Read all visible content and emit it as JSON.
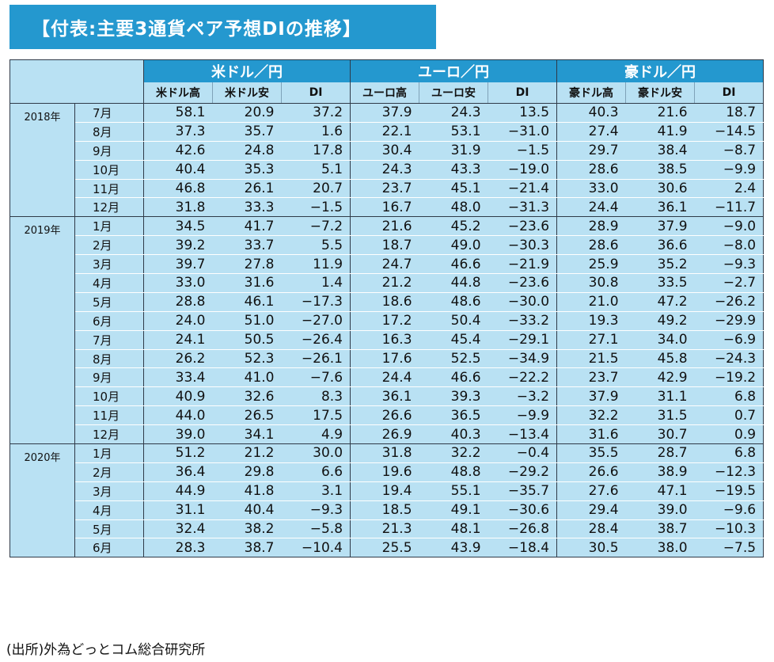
{
  "title": "【付表:主要3通貨ペア予想DIの推移】",
  "groups": [
    "米ドル／円",
    "ユーロ／円",
    "豪ドル／円"
  ],
  "subheaders": [
    "米ドル高",
    "米ドル安",
    "DI",
    "ユーロ高",
    "ユーロ安",
    "DI",
    "豪ドル高",
    "豪ドル安",
    "DI"
  ],
  "years": [
    {
      "year": "2018年",
      "rows": [
        {
          "month": "7月",
          "values": [
            "58.1",
            "20.9",
            "37.2",
            "37.9",
            "24.3",
            "13.5",
            "40.3",
            "21.6",
            "18.7"
          ]
        },
        {
          "month": "8月",
          "values": [
            "37.3",
            "35.7",
            "1.6",
            "22.1",
            "53.1",
            "−31.0",
            "27.4",
            "41.9",
            "−14.5"
          ]
        },
        {
          "month": "9月",
          "values": [
            "42.6",
            "24.8",
            "17.8",
            "30.4",
            "31.9",
            "−1.5",
            "29.7",
            "38.4",
            "−8.7"
          ]
        },
        {
          "month": "10月",
          "values": [
            "40.4",
            "35.3",
            "5.1",
            "24.3",
            "43.3",
            "−19.0",
            "28.6",
            "38.5",
            "−9.9"
          ]
        },
        {
          "month": "11月",
          "values": [
            "46.8",
            "26.1",
            "20.7",
            "23.7",
            "45.1",
            "−21.4",
            "33.0",
            "30.6",
            "2.4"
          ]
        },
        {
          "month": "12月",
          "values": [
            "31.8",
            "33.3",
            "−1.5",
            "16.7",
            "48.0",
            "−31.3",
            "24.4",
            "36.1",
            "−11.7"
          ]
        }
      ]
    },
    {
      "year": "2019年",
      "rows": [
        {
          "month": "1月",
          "values": [
            "34.5",
            "41.7",
            "−7.2",
            "21.6",
            "45.2",
            "−23.6",
            "28.9",
            "37.9",
            "−9.0"
          ]
        },
        {
          "month": "2月",
          "values": [
            "39.2",
            "33.7",
            "5.5",
            "18.7",
            "49.0",
            "−30.3",
            "28.6",
            "36.6",
            "−8.0"
          ]
        },
        {
          "month": "3月",
          "values": [
            "39.7",
            "27.8",
            "11.9",
            "24.7",
            "46.6",
            "−21.9",
            "25.9",
            "35.2",
            "−9.3"
          ]
        },
        {
          "month": "4月",
          "values": [
            "33.0",
            "31.6",
            "1.4",
            "21.2",
            "44.8",
            "−23.6",
            "30.8",
            "33.5",
            "−2.7"
          ]
        },
        {
          "month": "5月",
          "values": [
            "28.8",
            "46.1",
            "−17.3",
            "18.6",
            "48.6",
            "−30.0",
            "21.0",
            "47.2",
            "−26.2"
          ]
        },
        {
          "month": "6月",
          "values": [
            "24.0",
            "51.0",
            "−27.0",
            "17.2",
            "50.4",
            "−33.2",
            "19.3",
            "49.2",
            "−29.9"
          ]
        },
        {
          "month": "7月",
          "values": [
            "24.1",
            "50.5",
            "−26.4",
            "16.3",
            "45.4",
            "−29.1",
            "27.1",
            "34.0",
            "−6.9"
          ]
        },
        {
          "month": "8月",
          "values": [
            "26.2",
            "52.3",
            "−26.1",
            "17.6",
            "52.5",
            "−34.9",
            "21.5",
            "45.8",
            "−24.3"
          ]
        },
        {
          "month": "9月",
          "values": [
            "33.4",
            "41.0",
            "−7.6",
            "24.4",
            "46.6",
            "−22.2",
            "23.7",
            "42.9",
            "−19.2"
          ]
        },
        {
          "month": "10月",
          "values": [
            "40.9",
            "32.6",
            "8.3",
            "36.1",
            "39.3",
            "−3.2",
            "37.9",
            "31.1",
            "6.8"
          ]
        },
        {
          "month": "11月",
          "values": [
            "44.0",
            "26.5",
            "17.5",
            "26.6",
            "36.5",
            "−9.9",
            "32.2",
            "31.5",
            "0.7"
          ]
        },
        {
          "month": "12月",
          "values": [
            "39.0",
            "34.1",
            "4.9",
            "26.9",
            "40.3",
            "−13.4",
            "31.6",
            "30.7",
            "0.9"
          ]
        }
      ]
    },
    {
      "year": "2020年",
      "rows": [
        {
          "month": "1月",
          "values": [
            "51.2",
            "21.2",
            "30.0",
            "31.8",
            "32.2",
            "−0.4",
            "35.5",
            "28.7",
            "6.8"
          ]
        },
        {
          "month": "2月",
          "values": [
            "36.4",
            "29.8",
            "6.6",
            "19.6",
            "48.8",
            "−29.2",
            "26.6",
            "38.9",
            "−12.3"
          ]
        },
        {
          "month": "3月",
          "values": [
            "44.9",
            "41.8",
            "3.1",
            "19.4",
            "55.1",
            "−35.7",
            "27.6",
            "47.1",
            "−19.5"
          ]
        },
        {
          "month": "4月",
          "values": [
            "31.1",
            "40.4",
            "−9.3",
            "18.5",
            "49.1",
            "−30.6",
            "29.4",
            "39.0",
            "−9.6"
          ]
        },
        {
          "month": "5月",
          "values": [
            "32.4",
            "38.2",
            "−5.8",
            "21.3",
            "48.1",
            "−26.8",
            "28.4",
            "38.7",
            "−10.3"
          ]
        },
        {
          "month": "6月",
          "values": [
            "28.3",
            "38.7",
            "−10.4",
            "25.5",
            "43.9",
            "−18.4",
            "30.5",
            "38.0",
            "−7.5"
          ]
        }
      ]
    }
  ],
  "source": "(出所)外為どっとコム総合研究所",
  "colors": {
    "header_blue": "#2498cf",
    "cell_light_blue": "#b9e1f3",
    "border": "#2f3a48"
  }
}
